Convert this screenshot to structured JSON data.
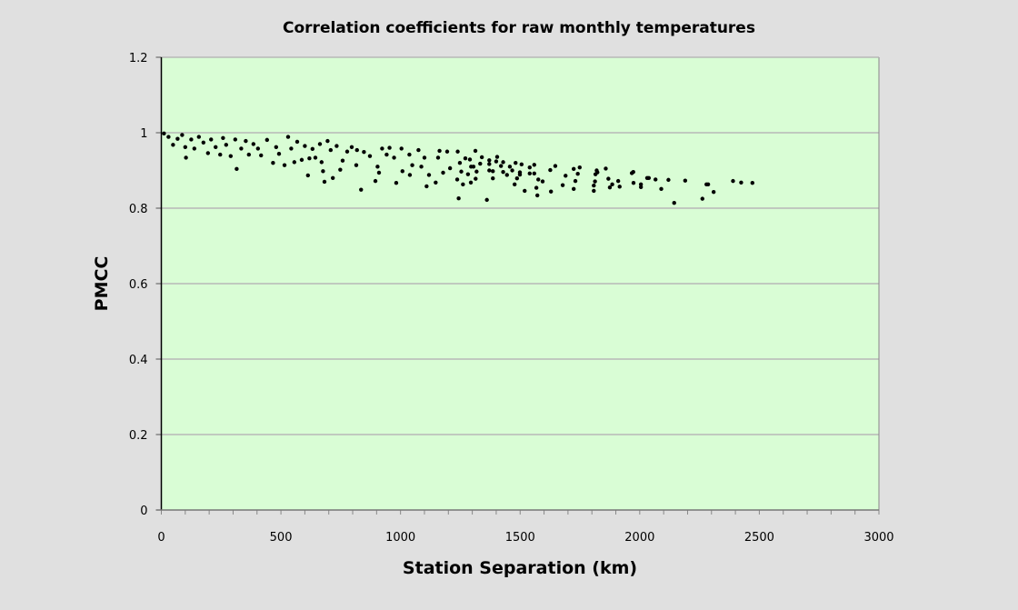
{
  "chart_data": {
    "type": "scatter",
    "title": "Correlation coefficients for raw monthly temperatures",
    "xlabel": "Station Separation (km)",
    "ylabel": "PMCC",
    "xlim": [
      0,
      3000
    ],
    "ylim": [
      0,
      1.2
    ],
    "xticks": [
      0,
      500,
      1000,
      1500,
      2000,
      2500,
      3000
    ],
    "yticks": [
      0,
      0.2,
      0.4,
      0.6,
      0.8,
      1,
      1.2
    ],
    "x_minor_tick_step": 100,
    "grid": "horizontal major",
    "legend": "none",
    "colors": {
      "background": "#e0e0e0",
      "plot_area": "#d9fdd5",
      "grid": "#b8b8b8",
      "points": "#000000"
    },
    "points": [
      [
        11,
        0.998
      ],
      [
        30,
        0.989
      ],
      [
        49,
        0.968
      ],
      [
        68,
        0.984
      ],
      [
        87,
        0.994
      ],
      [
        100,
        0.962
      ],
      [
        103,
        0.934
      ],
      [
        125,
        0.982
      ],
      [
        138,
        0.958
      ],
      [
        157,
        0.989
      ],
      [
        176,
        0.974
      ],
      [
        195,
        0.946
      ],
      [
        208,
        0.982
      ],
      [
        227,
        0.962
      ],
      [
        246,
        0.942
      ],
      [
        258,
        0.986
      ],
      [
        271,
        0.968
      ],
      [
        290,
        0.938
      ],
      [
        309,
        0.982
      ],
      [
        315,
        0.904
      ],
      [
        334,
        0.958
      ],
      [
        353,
        0.978
      ],
      [
        366,
        0.942
      ],
      [
        385,
        0.97
      ],
      [
        404,
        0.958
      ],
      [
        417,
        0.94
      ],
      [
        442,
        0.981
      ],
      [
        467,
        0.92
      ],
      [
        480,
        0.962
      ],
      [
        492,
        0.944
      ],
      [
        515,
        0.914
      ],
      [
        530,
        0.989
      ],
      [
        543,
        0.958
      ],
      [
        556,
        0.922
      ],
      [
        568,
        0.976
      ],
      [
        587,
        0.928
      ],
      [
        600,
        0.965
      ],
      [
        613,
        0.887
      ],
      [
        619,
        0.932
      ],
      [
        632,
        0.957
      ],
      [
        644,
        0.934
      ],
      [
        663,
        0.97
      ],
      [
        670,
        0.922
      ],
      [
        676,
        0.898
      ],
      [
        682,
        0.87
      ],
      [
        695,
        0.978
      ],
      [
        708,
        0.954
      ],
      [
        717,
        0.88
      ],
      [
        733,
        0.965
      ],
      [
        748,
        0.902
      ],
      [
        758,
        0.926
      ],
      [
        777,
        0.95
      ],
      [
        796,
        0.962
      ],
      [
        815,
        0.914
      ],
      [
        818,
        0.954
      ],
      [
        835,
        0.849
      ],
      [
        847,
        0.949
      ],
      [
        872,
        0.938
      ],
      [
        895,
        0.872
      ],
      [
        904,
        0.91
      ],
      [
        910,
        0.894
      ],
      [
        923,
        0.958
      ],
      [
        942,
        0.942
      ],
      [
        954,
        0.96
      ],
      [
        973,
        0.934
      ],
      [
        982,
        0.867
      ],
      [
        1004,
        0.958
      ],
      [
        1008,
        0.898
      ],
      [
        1037,
        0.942
      ],
      [
        1039,
        0.888
      ],
      [
        1049,
        0.914
      ],
      [
        1075,
        0.954
      ],
      [
        1087,
        0.91
      ],
      [
        1100,
        0.934
      ],
      [
        1109,
        0.858
      ],
      [
        1119,
        0.888
      ],
      [
        1147,
        0.868
      ],
      [
        1157,
        0.934
      ],
      [
        1163,
        0.952
      ],
      [
        1178,
        0.894
      ],
      [
        1195,
        0.95
      ],
      [
        1207,
        0.906
      ],
      [
        1237,
        0.876
      ],
      [
        1239,
        0.95
      ],
      [
        1243,
        0.826
      ],
      [
        1248,
        0.92
      ],
      [
        1254,
        0.897
      ],
      [
        1261,
        0.863
      ],
      [
        1271,
        0.932
      ],
      [
        1282,
        0.89
      ],
      [
        1290,
        0.929
      ],
      [
        1294,
        0.868
      ],
      [
        1295,
        0.91
      ],
      [
        1305,
        0.91
      ],
      [
        1313,
        0.952
      ],
      [
        1314,
        0.878
      ],
      [
        1318,
        0.897
      ],
      [
        1333,
        0.918
      ],
      [
        1340,
        0.935
      ],
      [
        1361,
        0.822
      ],
      [
        1371,
        0.927
      ],
      [
        1371,
        0.917
      ],
      [
        1371,
        0.9
      ],
      [
        1386,
        0.898
      ],
      [
        1386,
        0.879
      ],
      [
        1400,
        0.924
      ],
      [
        1404,
        0.936
      ],
      [
        1420,
        0.912
      ],
      [
        1429,
        0.896
      ],
      [
        1429,
        0.922
      ],
      [
        1445,
        0.888
      ],
      [
        1457,
        0.91
      ],
      [
        1467,
        0.9
      ],
      [
        1477,
        0.863
      ],
      [
        1481,
        0.92
      ],
      [
        1487,
        0.879
      ],
      [
        1499,
        0.895
      ],
      [
        1499,
        0.889
      ],
      [
        1506,
        0.916
      ],
      [
        1519,
        0.846
      ],
      [
        1540,
        0.908
      ],
      [
        1540,
        0.892
      ],
      [
        1559,
        0.915
      ],
      [
        1559,
        0.892
      ],
      [
        1568,
        0.854
      ],
      [
        1572,
        0.834
      ],
      [
        1576,
        0.876
      ],
      [
        1594,
        0.871
      ],
      [
        1626,
        0.901
      ],
      [
        1629,
        0.844
      ],
      [
        1647,
        0.912
      ],
      [
        1678,
        0.861
      ],
      [
        1690,
        0.886
      ],
      [
        1724,
        0.904
      ],
      [
        1724,
        0.851
      ],
      [
        1731,
        0.872
      ],
      [
        1741,
        0.891
      ],
      [
        1749,
        0.908
      ],
      [
        1808,
        0.846
      ],
      [
        1808,
        0.86
      ],
      [
        1813,
        0.871
      ],
      [
        1815,
        0.89
      ],
      [
        1820,
        0.9
      ],
      [
        1823,
        0.895
      ],
      [
        1858,
        0.905
      ],
      [
        1869,
        0.878
      ],
      [
        1875,
        0.855
      ],
      [
        1885,
        0.863
      ],
      [
        1910,
        0.872
      ],
      [
        1916,
        0.857
      ],
      [
        1967,
        0.893
      ],
      [
        1973,
        0.896
      ],
      [
        1974,
        0.867
      ],
      [
        2005,
        0.856
      ],
      [
        2005,
        0.863
      ],
      [
        2031,
        0.88
      ],
      [
        2038,
        0.88
      ],
      [
        2066,
        0.876
      ],
      [
        2090,
        0.851
      ],
      [
        2120,
        0.875
      ],
      [
        2144,
        0.814
      ],
      [
        2190,
        0.873
      ],
      [
        2262,
        0.825
      ],
      [
        2279,
        0.863
      ],
      [
        2286,
        0.863
      ],
      [
        2309,
        0.843
      ],
      [
        2390,
        0.872
      ],
      [
        2424,
        0.868
      ],
      [
        2471,
        0.867
      ]
    ]
  }
}
